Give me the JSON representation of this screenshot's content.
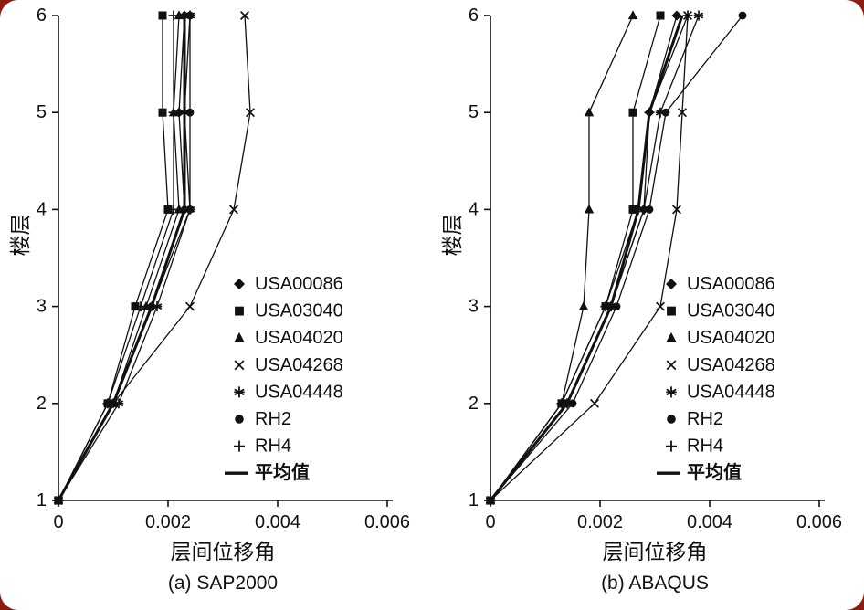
{
  "figure": {
    "background": "#ffffff",
    "frame_color": "#8b1d12",
    "ink": "#111111"
  },
  "chart_data": [
    {
      "type": "line",
      "caption": "(a) SAP2000",
      "xlabel": "层间位移角",
      "ylabel": "楼层",
      "xlim": [
        0,
        0.006
      ],
      "ylim": [
        1,
        6
      ],
      "xticks": [
        0,
        0.002,
        0.004,
        0.006
      ],
      "xtick_labels": [
        "0",
        "0.002",
        "0.004",
        "0.006"
      ],
      "yticks": [
        1,
        2,
        3,
        4,
        5,
        6
      ],
      "ytick_labels": [
        "1",
        "2",
        "3",
        "4",
        "5",
        "6"
      ],
      "grid": false,
      "legend_position": "inside-right-lower",
      "floors": [
        1,
        2,
        3,
        4,
        5,
        6
      ],
      "series": [
        {
          "name": "USA00086",
          "marker": "diamond",
          "values": [
            0,
            0.001,
            0.0017,
            0.0023,
            0.0022,
            0.0023
          ]
        },
        {
          "name": "USA03040",
          "marker": "square",
          "values": [
            0,
            0.0009,
            0.0014,
            0.002,
            0.0019,
            0.0019
          ]
        },
        {
          "name": "USA04020",
          "marker": "triangle",
          "values": [
            0,
            0.001,
            0.0016,
            0.0022,
            0.0021,
            0.0022
          ]
        },
        {
          "name": "USA04268",
          "marker": "x",
          "values": [
            0,
            0.001,
            0.0024,
            0.0032,
            0.0035,
            0.0034
          ]
        },
        {
          "name": "USA04448",
          "marker": "star",
          "values": [
            0,
            0.0011,
            0.0018,
            0.0024,
            0.0023,
            0.0024
          ]
        },
        {
          "name": "RH2",
          "marker": "circle",
          "values": [
            0,
            0.001,
            0.0017,
            0.0024,
            0.0024,
            0.0024
          ]
        },
        {
          "name": "RH4",
          "marker": "plus",
          "values": [
            0,
            0.0009,
            0.0015,
            0.0021,
            0.0021,
            0.0021
          ]
        },
        {
          "name": "平均值",
          "marker": "none",
          "thick": true,
          "values": [
            0,
            0.001,
            0.0017,
            0.0023,
            0.0023,
            0.0023
          ]
        }
      ]
    },
    {
      "type": "line",
      "caption": "(b) ABAQUS",
      "xlabel": "层间位移角",
      "ylabel": "楼层",
      "xlim": [
        0,
        0.006
      ],
      "ylim": [
        1,
        6
      ],
      "xticks": [
        0,
        0.002,
        0.004,
        0.006
      ],
      "xtick_labels": [
        "0",
        "0.002",
        "0.004",
        "0.006"
      ],
      "yticks": [
        1,
        2,
        3,
        4,
        5,
        6
      ],
      "ytick_labels": [
        "1",
        "2",
        "3",
        "4",
        "5",
        "6"
      ],
      "grid": false,
      "legend_position": "inside-right-lower",
      "floors": [
        1,
        2,
        3,
        4,
        5,
        6
      ],
      "series": [
        {
          "name": "USA00086",
          "marker": "diamond",
          "values": [
            0,
            0.0014,
            0.0022,
            0.0028,
            0.0029,
            0.0034
          ]
        },
        {
          "name": "USA03040",
          "marker": "square",
          "values": [
            0,
            0.0013,
            0.0021,
            0.0026,
            0.0026,
            0.0031
          ]
        },
        {
          "name": "USA04020",
          "marker": "triangle",
          "values": [
            0,
            0.0013,
            0.0017,
            0.0018,
            0.0018,
            0.0026
          ]
        },
        {
          "name": "USA04268",
          "marker": "x",
          "values": [
            0,
            0.0019,
            0.0031,
            0.0034,
            0.0035,
            0.0036
          ]
        },
        {
          "name": "USA04448",
          "marker": "star",
          "values": [
            0,
            0.0014,
            0.0022,
            0.0028,
            0.0031,
            0.0038
          ]
        },
        {
          "name": "RH2",
          "marker": "circle",
          "values": [
            0,
            0.0015,
            0.0023,
            0.0029,
            0.0032,
            0.0046
          ]
        },
        {
          "name": "RH4",
          "marker": "plus",
          "values": [
            0,
            0.0013,
            0.0021,
            0.0027,
            0.0029,
            0.0036
          ]
        },
        {
          "name": "平均值",
          "marker": "none",
          "thick": true,
          "values": [
            0,
            0.0014,
            0.0022,
            0.0027,
            0.0029,
            0.0035
          ]
        }
      ]
    }
  ]
}
